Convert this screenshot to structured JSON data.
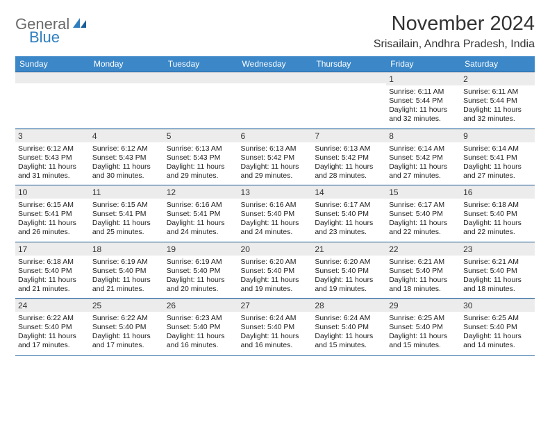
{
  "logo": {
    "word1": "General",
    "word2": "Blue"
  },
  "title": "November 2024",
  "location": "Srisailain, Andhra Pradesh, India",
  "colors": {
    "header_bg": "#3b87c8",
    "header_border": "#2f6fa8",
    "daynum_bg": "#ececec",
    "text": "#333333",
    "logo_gray": "#6a6a6a",
    "logo_blue": "#2f7fbf"
  },
  "day_headers": [
    "Sunday",
    "Monday",
    "Tuesday",
    "Wednesday",
    "Thursday",
    "Friday",
    "Saturday"
  ],
  "weeks": [
    [
      {
        "n": "",
        "lines": []
      },
      {
        "n": "",
        "lines": []
      },
      {
        "n": "",
        "lines": []
      },
      {
        "n": "",
        "lines": []
      },
      {
        "n": "",
        "lines": []
      },
      {
        "n": "1",
        "lines": [
          "Sunrise: 6:11 AM",
          "Sunset: 5:44 PM",
          "Daylight: 11 hours",
          "and 32 minutes."
        ]
      },
      {
        "n": "2",
        "lines": [
          "Sunrise: 6:11 AM",
          "Sunset: 5:44 PM",
          "Daylight: 11 hours",
          "and 32 minutes."
        ]
      }
    ],
    [
      {
        "n": "3",
        "lines": [
          "Sunrise: 6:12 AM",
          "Sunset: 5:43 PM",
          "Daylight: 11 hours",
          "and 31 minutes."
        ]
      },
      {
        "n": "4",
        "lines": [
          "Sunrise: 6:12 AM",
          "Sunset: 5:43 PM",
          "Daylight: 11 hours",
          "and 30 minutes."
        ]
      },
      {
        "n": "5",
        "lines": [
          "Sunrise: 6:13 AM",
          "Sunset: 5:43 PM",
          "Daylight: 11 hours",
          "and 29 minutes."
        ]
      },
      {
        "n": "6",
        "lines": [
          "Sunrise: 6:13 AM",
          "Sunset: 5:42 PM",
          "Daylight: 11 hours",
          "and 29 minutes."
        ]
      },
      {
        "n": "7",
        "lines": [
          "Sunrise: 6:13 AM",
          "Sunset: 5:42 PM",
          "Daylight: 11 hours",
          "and 28 minutes."
        ]
      },
      {
        "n": "8",
        "lines": [
          "Sunrise: 6:14 AM",
          "Sunset: 5:42 PM",
          "Daylight: 11 hours",
          "and 27 minutes."
        ]
      },
      {
        "n": "9",
        "lines": [
          "Sunrise: 6:14 AM",
          "Sunset: 5:41 PM",
          "Daylight: 11 hours",
          "and 27 minutes."
        ]
      }
    ],
    [
      {
        "n": "10",
        "lines": [
          "Sunrise: 6:15 AM",
          "Sunset: 5:41 PM",
          "Daylight: 11 hours",
          "and 26 minutes."
        ]
      },
      {
        "n": "11",
        "lines": [
          "Sunrise: 6:15 AM",
          "Sunset: 5:41 PM",
          "Daylight: 11 hours",
          "and 25 minutes."
        ]
      },
      {
        "n": "12",
        "lines": [
          "Sunrise: 6:16 AM",
          "Sunset: 5:41 PM",
          "Daylight: 11 hours",
          "and 24 minutes."
        ]
      },
      {
        "n": "13",
        "lines": [
          "Sunrise: 6:16 AM",
          "Sunset: 5:40 PM",
          "Daylight: 11 hours",
          "and 24 minutes."
        ]
      },
      {
        "n": "14",
        "lines": [
          "Sunrise: 6:17 AM",
          "Sunset: 5:40 PM",
          "Daylight: 11 hours",
          "and 23 minutes."
        ]
      },
      {
        "n": "15",
        "lines": [
          "Sunrise: 6:17 AM",
          "Sunset: 5:40 PM",
          "Daylight: 11 hours",
          "and 22 minutes."
        ]
      },
      {
        "n": "16",
        "lines": [
          "Sunrise: 6:18 AM",
          "Sunset: 5:40 PM",
          "Daylight: 11 hours",
          "and 22 minutes."
        ]
      }
    ],
    [
      {
        "n": "17",
        "lines": [
          "Sunrise: 6:18 AM",
          "Sunset: 5:40 PM",
          "Daylight: 11 hours",
          "and 21 minutes."
        ]
      },
      {
        "n": "18",
        "lines": [
          "Sunrise: 6:19 AM",
          "Sunset: 5:40 PM",
          "Daylight: 11 hours",
          "and 21 minutes."
        ]
      },
      {
        "n": "19",
        "lines": [
          "Sunrise: 6:19 AM",
          "Sunset: 5:40 PM",
          "Daylight: 11 hours",
          "and 20 minutes."
        ]
      },
      {
        "n": "20",
        "lines": [
          "Sunrise: 6:20 AM",
          "Sunset: 5:40 PM",
          "Daylight: 11 hours",
          "and 19 minutes."
        ]
      },
      {
        "n": "21",
        "lines": [
          "Sunrise: 6:20 AM",
          "Sunset: 5:40 PM",
          "Daylight: 11 hours",
          "and 19 minutes."
        ]
      },
      {
        "n": "22",
        "lines": [
          "Sunrise: 6:21 AM",
          "Sunset: 5:40 PM",
          "Daylight: 11 hours",
          "and 18 minutes."
        ]
      },
      {
        "n": "23",
        "lines": [
          "Sunrise: 6:21 AM",
          "Sunset: 5:40 PM",
          "Daylight: 11 hours",
          "and 18 minutes."
        ]
      }
    ],
    [
      {
        "n": "24",
        "lines": [
          "Sunrise: 6:22 AM",
          "Sunset: 5:40 PM",
          "Daylight: 11 hours",
          "and 17 minutes."
        ]
      },
      {
        "n": "25",
        "lines": [
          "Sunrise: 6:22 AM",
          "Sunset: 5:40 PM",
          "Daylight: 11 hours",
          "and 17 minutes."
        ]
      },
      {
        "n": "26",
        "lines": [
          "Sunrise: 6:23 AM",
          "Sunset: 5:40 PM",
          "Daylight: 11 hours",
          "and 16 minutes."
        ]
      },
      {
        "n": "27",
        "lines": [
          "Sunrise: 6:24 AM",
          "Sunset: 5:40 PM",
          "Daylight: 11 hours",
          "and 16 minutes."
        ]
      },
      {
        "n": "28",
        "lines": [
          "Sunrise: 6:24 AM",
          "Sunset: 5:40 PM",
          "Daylight: 11 hours",
          "and 15 minutes."
        ]
      },
      {
        "n": "29",
        "lines": [
          "Sunrise: 6:25 AM",
          "Sunset: 5:40 PM",
          "Daylight: 11 hours",
          "and 15 minutes."
        ]
      },
      {
        "n": "30",
        "lines": [
          "Sunrise: 6:25 AM",
          "Sunset: 5:40 PM",
          "Daylight: 11 hours",
          "and 14 minutes."
        ]
      }
    ]
  ]
}
